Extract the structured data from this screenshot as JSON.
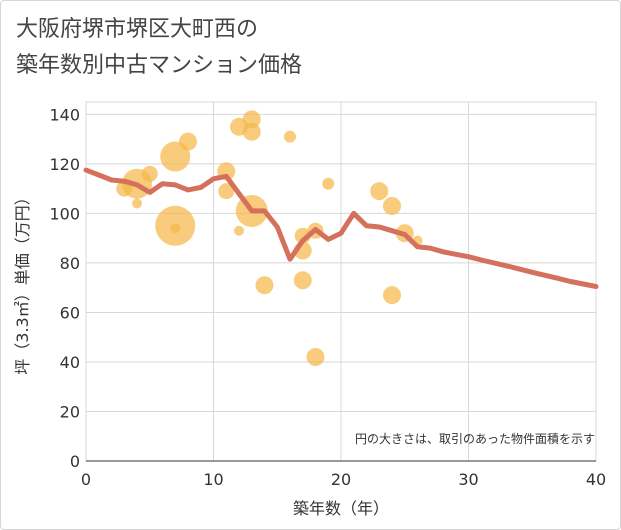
{
  "chart_data": {
    "type": "scatter",
    "title_lines": [
      "大阪府堺市堺区大町西の",
      "築年数別中古マンション価格"
    ],
    "xlabel": "築年数（年）",
    "ylabel": "坪（3.3㎡）単価（万円）",
    "xlim": [
      0,
      40
    ],
    "ylim": [
      0,
      145
    ],
    "x_ticks": [
      0,
      10,
      20,
      30,
      40
    ],
    "y_ticks": [
      0,
      20,
      40,
      60,
      80,
      100,
      120,
      140
    ],
    "grid": true,
    "note": "円の大きさは、取引のあった物件面積を示す",
    "colors": {
      "bubble": "#f5b94a",
      "line": "#d4705c",
      "grid": "#d8d8d8",
      "plot_bg": "#ffffff"
    },
    "bubbles": [
      {
        "x": 3,
        "y": 110,
        "r": 8
      },
      {
        "x": 4,
        "y": 112,
        "r": 15
      },
      {
        "x": 4,
        "y": 104,
        "r": 5
      },
      {
        "x": 5,
        "y": 116,
        "r": 8
      },
      {
        "x": 7,
        "y": 123,
        "r": 15
      },
      {
        "x": 7,
        "y": 95,
        "r": 20
      },
      {
        "x": 7,
        "y": 94,
        "r": 5
      },
      {
        "x": 8,
        "y": 129,
        "r": 9
      },
      {
        "x": 11,
        "y": 117,
        "r": 9
      },
      {
        "x": 11,
        "y": 109,
        "r": 8
      },
      {
        "x": 12,
        "y": 135,
        "r": 9
      },
      {
        "x": 12,
        "y": 93,
        "r": 5
      },
      {
        "x": 13,
        "y": 138,
        "r": 9
      },
      {
        "x": 13,
        "y": 133,
        "r": 9
      },
      {
        "x": 13,
        "y": 101,
        "r": 16
      },
      {
        "x": 14,
        "y": 71,
        "r": 9
      },
      {
        "x": 16,
        "y": 131,
        "r": 6
      },
      {
        "x": 17,
        "y": 91,
        "r": 8
      },
      {
        "x": 17,
        "y": 85,
        "r": 9
      },
      {
        "x": 17,
        "y": 73,
        "r": 9
      },
      {
        "x": 18,
        "y": 93,
        "r": 8
      },
      {
        "x": 18,
        "y": 42,
        "r": 9
      },
      {
        "x": 19,
        "y": 112,
        "r": 6
      },
      {
        "x": 23,
        "y": 109,
        "r": 9
      },
      {
        "x": 24,
        "y": 103,
        "r": 9
      },
      {
        "x": 24,
        "y": 67,
        "r": 9
      },
      {
        "x": 25,
        "y": 92,
        "r": 9
      },
      {
        "x": 26,
        "y": 89,
        "r": 5
      }
    ],
    "trend": {
      "x": [
        0,
        1,
        2,
        3,
        4,
        5,
        6,
        7,
        8,
        9,
        10,
        11,
        12,
        13,
        14,
        15,
        16,
        17,
        18,
        19,
        20,
        21,
        22,
        23,
        24,
        25,
        26,
        27,
        28,
        29,
        30,
        31,
        32,
        33,
        34,
        35,
        36,
        37,
        38,
        39,
        40
      ],
      "values": [
        117.5,
        115.5,
        113.5,
        113,
        111.5,
        108.5,
        112,
        111.5,
        109.5,
        110.5,
        114,
        115,
        108,
        101,
        101,
        94.5,
        81.5,
        89,
        93.5,
        89.5,
        92,
        100,
        95,
        94.5,
        93,
        91.5,
        86.5,
        86,
        84.5,
        83.5,
        82.5,
        81.2,
        80,
        78.8,
        77.5,
        76.2,
        75,
        73.8,
        72.5,
        71.5,
        70.5
      ]
    }
  }
}
